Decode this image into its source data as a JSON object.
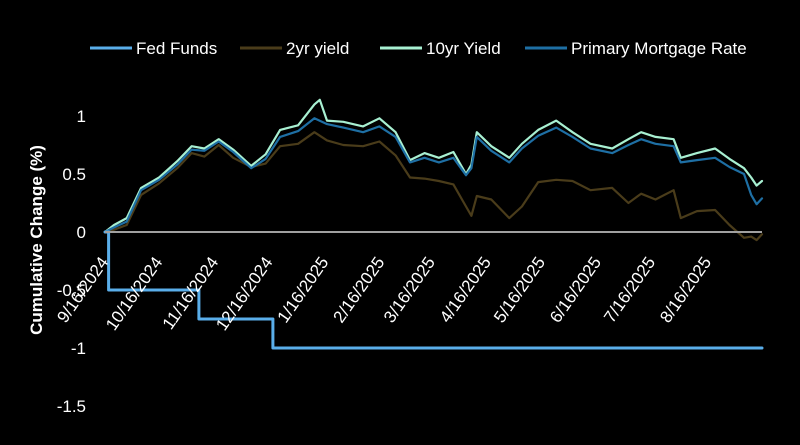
{
  "chart_data": {
    "type": "line",
    "title": "",
    "xlabel": "",
    "ylabel": "Cumulative Change (%)",
    "ylim": [
      -1.5,
      1.25
    ],
    "yticks": [
      1,
      0.5,
      0,
      -0.5,
      -1,
      -1.5
    ],
    "ytick_labels": [
      "1",
      "0.5",
      "0",
      "-0.5",
      "-1",
      "-1.5"
    ],
    "xlim": [
      "2024-09-16",
      "2025-09-15"
    ],
    "xtick_labels": [
      "9/16/2024",
      "10/16/2024",
      "11/16/2024",
      "12/16/2024",
      "1/16/2025",
      "2/16/2025",
      "3/16/2025",
      "4/16/2025",
      "5/16/2025",
      "6/16/2025",
      "7/16/2025",
      "8/16/2025"
    ],
    "xtick_dates": [
      "2024-09-16",
      "2024-10-16",
      "2024-11-16",
      "2024-12-16",
      "2025-01-16",
      "2025-02-16",
      "2025-03-16",
      "2025-04-16",
      "2025-05-16",
      "2025-06-16",
      "2025-07-16",
      "2025-08-16"
    ],
    "grid": false,
    "legend_position": "top",
    "series": [
      {
        "name": "Fed Funds",
        "color": "#5aaeea",
        "step": true,
        "points": [
          [
            "2024-09-16",
            0
          ],
          [
            "2024-09-18",
            -0.5
          ],
          [
            "2024-11-07",
            -0.75
          ],
          [
            "2024-12-18",
            -1.0
          ],
          [
            "2025-09-15",
            -1.0
          ]
        ]
      },
      {
        "name": "2yr yield",
        "color": "#4a3c1a",
        "points": [
          [
            "2024-09-16",
            0
          ],
          [
            "2024-09-21",
            0.02
          ],
          [
            "2024-09-28",
            0.06
          ],
          [
            "2024-10-06",
            0.32
          ],
          [
            "2024-10-16",
            0.42
          ],
          [
            "2024-10-26",
            0.55
          ],
          [
            "2024-11-03",
            0.68
          ],
          [
            "2024-11-10",
            0.65
          ],
          [
            "2024-11-18",
            0.75
          ],
          [
            "2024-11-26",
            0.64
          ],
          [
            "2024-12-06",
            0.56
          ],
          [
            "2024-12-14",
            0.59
          ],
          [
            "2024-12-22",
            0.74
          ],
          [
            "2025-01-01",
            0.76
          ],
          [
            "2025-01-10",
            0.86
          ],
          [
            "2025-01-17",
            0.79
          ],
          [
            "2025-01-26",
            0.75
          ],
          [
            "2025-02-06",
            0.74
          ],
          [
            "2025-02-15",
            0.78
          ],
          [
            "2025-02-24",
            0.66
          ],
          [
            "2025-03-04",
            0.47
          ],
          [
            "2025-03-12",
            0.46
          ],
          [
            "2025-03-20",
            0.44
          ],
          [
            "2025-03-28",
            0.41
          ],
          [
            "2025-04-04",
            0.22
          ],
          [
            "2025-04-07",
            0.14
          ],
          [
            "2025-04-10",
            0.31
          ],
          [
            "2025-04-18",
            0.28
          ],
          [
            "2025-04-28",
            0.12
          ],
          [
            "2025-05-05",
            0.22
          ],
          [
            "2025-05-14",
            0.43
          ],
          [
            "2025-05-24",
            0.45
          ],
          [
            "2025-06-02",
            0.44
          ],
          [
            "2025-06-12",
            0.36
          ],
          [
            "2025-06-24",
            0.38
          ],
          [
            "2025-07-03",
            0.25
          ],
          [
            "2025-07-10",
            0.33
          ],
          [
            "2025-07-18",
            0.28
          ],
          [
            "2025-07-28",
            0.36
          ],
          [
            "2025-08-01",
            0.12
          ],
          [
            "2025-08-10",
            0.18
          ],
          [
            "2025-08-20",
            0.19
          ],
          [
            "2025-08-28",
            0.06
          ],
          [
            "2025-09-05",
            -0.05
          ],
          [
            "2025-09-09",
            -0.04
          ],
          [
            "2025-09-12",
            -0.07
          ],
          [
            "2025-09-15",
            -0.02
          ]
        ]
      },
      {
        "name": "10yr Yield",
        "color": "#a8f0d2",
        "points": [
          [
            "2024-09-16",
            0
          ],
          [
            "2024-09-21",
            0.06
          ],
          [
            "2024-09-28",
            0.12
          ],
          [
            "2024-10-06",
            0.38
          ],
          [
            "2024-10-16",
            0.47
          ],
          [
            "2024-10-26",
            0.61
          ],
          [
            "2024-11-03",
            0.74
          ],
          [
            "2024-11-10",
            0.72
          ],
          [
            "2024-11-18",
            0.8
          ],
          [
            "2024-11-26",
            0.71
          ],
          [
            "2024-12-06",
            0.57
          ],
          [
            "2024-12-14",
            0.67
          ],
          [
            "2024-12-22",
            0.88
          ],
          [
            "2025-01-01",
            0.92
          ],
          [
            "2025-01-10",
            1.1
          ],
          [
            "2025-01-13",
            1.14
          ],
          [
            "2025-01-17",
            0.96
          ],
          [
            "2025-01-26",
            0.95
          ],
          [
            "2025-02-06",
            0.91
          ],
          [
            "2025-02-15",
            0.98
          ],
          [
            "2025-02-24",
            0.86
          ],
          [
            "2025-03-04",
            0.62
          ],
          [
            "2025-03-12",
            0.68
          ],
          [
            "2025-03-20",
            0.64
          ],
          [
            "2025-03-28",
            0.69
          ],
          [
            "2025-04-04",
            0.5
          ],
          [
            "2025-04-07",
            0.58
          ],
          [
            "2025-04-10",
            0.86
          ],
          [
            "2025-04-18",
            0.74
          ],
          [
            "2025-04-28",
            0.64
          ],
          [
            "2025-05-05",
            0.76
          ],
          [
            "2025-05-14",
            0.88
          ],
          [
            "2025-05-24",
            0.96
          ],
          [
            "2025-06-02",
            0.86
          ],
          [
            "2025-06-12",
            0.76
          ],
          [
            "2025-06-24",
            0.72
          ],
          [
            "2025-07-03",
            0.8
          ],
          [
            "2025-07-10",
            0.86
          ],
          [
            "2025-07-18",
            0.82
          ],
          [
            "2025-07-28",
            0.8
          ],
          [
            "2025-08-01",
            0.64
          ],
          [
            "2025-08-10",
            0.68
          ],
          [
            "2025-08-20",
            0.72
          ],
          [
            "2025-08-28",
            0.63
          ],
          [
            "2025-09-05",
            0.55
          ],
          [
            "2025-09-09",
            0.47
          ],
          [
            "2025-09-12",
            0.4
          ],
          [
            "2025-09-15",
            0.44
          ]
        ]
      },
      {
        "name": "Primary Mortgage Rate",
        "color": "#1e6fa4",
        "points": [
          [
            "2024-09-16",
            0
          ],
          [
            "2024-09-21",
            0.04
          ],
          [
            "2024-09-28",
            0.09
          ],
          [
            "2024-10-06",
            0.36
          ],
          [
            "2024-10-16",
            0.45
          ],
          [
            "2024-10-26",
            0.58
          ],
          [
            "2024-11-03",
            0.71
          ],
          [
            "2024-11-10",
            0.7
          ],
          [
            "2024-11-18",
            0.78
          ],
          [
            "2024-11-26",
            0.69
          ],
          [
            "2024-12-06",
            0.55
          ],
          [
            "2024-12-14",
            0.63
          ],
          [
            "2024-12-22",
            0.82
          ],
          [
            "2025-01-01",
            0.87
          ],
          [
            "2025-01-10",
            0.98
          ],
          [
            "2025-01-17",
            0.93
          ],
          [
            "2025-01-26",
            0.9
          ],
          [
            "2025-02-06",
            0.86
          ],
          [
            "2025-02-15",
            0.91
          ],
          [
            "2025-02-24",
            0.82
          ],
          [
            "2025-03-04",
            0.6
          ],
          [
            "2025-03-12",
            0.64
          ],
          [
            "2025-03-20",
            0.6
          ],
          [
            "2025-03-28",
            0.64
          ],
          [
            "2025-04-04",
            0.49
          ],
          [
            "2025-04-07",
            0.55
          ],
          [
            "2025-04-10",
            0.82
          ],
          [
            "2025-04-18",
            0.7
          ],
          [
            "2025-04-28",
            0.6
          ],
          [
            "2025-05-05",
            0.72
          ],
          [
            "2025-05-14",
            0.83
          ],
          [
            "2025-05-24",
            0.9
          ],
          [
            "2025-06-02",
            0.82
          ],
          [
            "2025-06-12",
            0.72
          ],
          [
            "2025-06-24",
            0.68
          ],
          [
            "2025-07-03",
            0.75
          ],
          [
            "2025-07-10",
            0.8
          ],
          [
            "2025-07-18",
            0.76
          ],
          [
            "2025-07-28",
            0.74
          ],
          [
            "2025-08-01",
            0.6
          ],
          [
            "2025-08-10",
            0.62
          ],
          [
            "2025-08-20",
            0.64
          ],
          [
            "2025-08-28",
            0.56
          ],
          [
            "2025-09-05",
            0.5
          ],
          [
            "2025-09-09",
            0.32
          ],
          [
            "2025-09-12",
            0.24
          ],
          [
            "2025-09-15",
            0.29
          ]
        ]
      }
    ]
  }
}
